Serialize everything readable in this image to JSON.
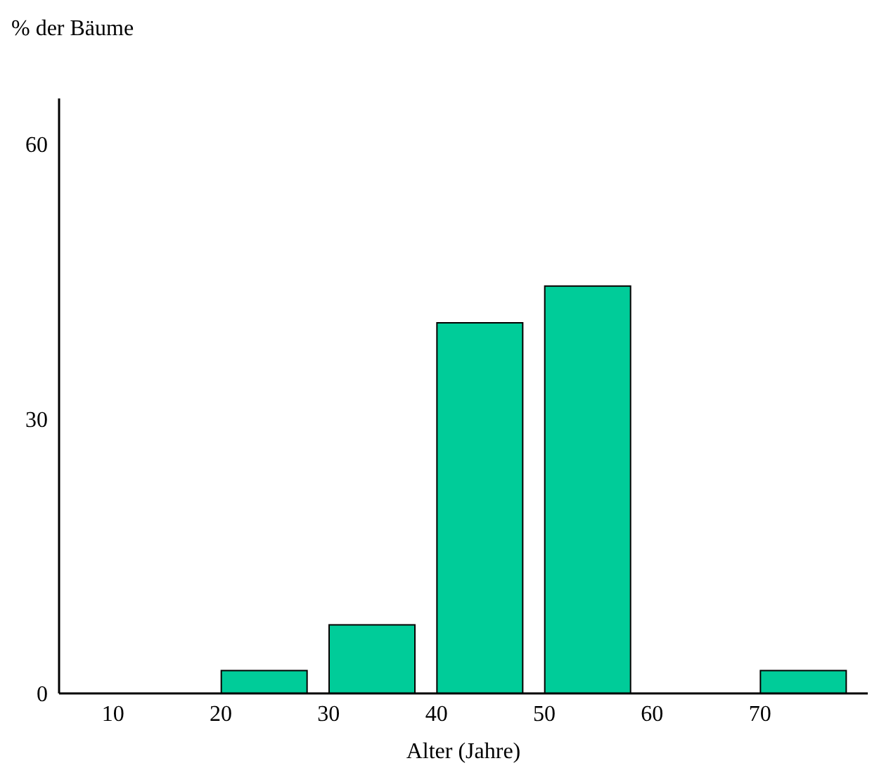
{
  "chart_data": {
    "type": "bar",
    "xlabel": "Alter (Jahre)",
    "ylabel": "% der Bäume",
    "x": [
      24,
      34,
      44,
      54,
      74
    ],
    "values": [
      2.5,
      7.5,
      40.5,
      44.5,
      2.5
    ],
    "color": "#00cc99",
    "xlim": [
      5,
      80
    ],
    "xticks": [
      10,
      20,
      30,
      40,
      50,
      60,
      70
    ],
    "ylim": [
      0,
      65
    ],
    "yticks": [
      0,
      30,
      60
    ]
  }
}
